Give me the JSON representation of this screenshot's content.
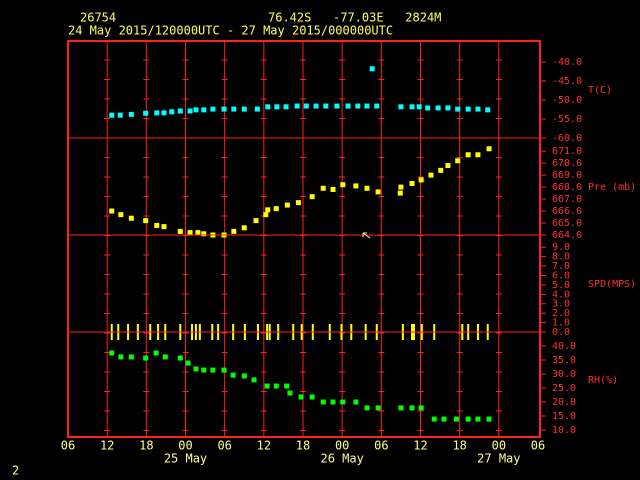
{
  "header": {
    "station": "26754",
    "location": "76.42S   -77.03E   2824M",
    "period": "24 May 2015/120000UTC - 27 May 2015/000000UTC",
    "page": "2"
  },
  "chart_data": [
    {
      "type": "scatter",
      "ylabel": "T(C)",
      "color": "#00ffff",
      "xlim": [
        0,
        72
      ],
      "ylim": [
        -60,
        -34.5
      ],
      "yticks": [
        {
          "value": -40,
          "label": "-40.0"
        },
        {
          "value": -45,
          "label": "-45.0"
        },
        {
          "value": -50,
          "label": "-50.0"
        },
        {
          "value": -55,
          "label": "-55.0"
        },
        {
          "value": -60,
          "label": "-60.0"
        }
      ],
      "x": [
        6.7,
        8.0,
        9.7,
        11.9,
        13.6,
        14.7,
        15.9,
        17.2,
        18.7,
        19.6,
        20.8,
        22.2,
        23.9,
        25.4,
        27.0,
        29.0,
        30.6,
        32.0,
        33.4,
        35.1,
        36.5,
        38.0,
        39.5,
        41.2,
        42.9,
        44.4,
        45.8,
        46.6,
        47.3,
        51.0,
        52.7,
        53.8,
        55.1,
        56.7,
        58.2,
        59.7,
        61.3,
        62.8,
        64.3
      ],
      "values": [
        -54.0,
        -54.0,
        -53.8,
        -53.5,
        -53.4,
        -53.4,
        -53.1,
        -52.9,
        -52.9,
        -52.6,
        -52.6,
        -52.4,
        -52.4,
        -52.4,
        -52.4,
        -52.4,
        -51.8,
        -51.8,
        -51.8,
        -51.6,
        -51.6,
        -51.6,
        -51.6,
        -51.6,
        -51.6,
        -51.6,
        -51.6,
        -41.8,
        -51.6,
        -51.8,
        -51.8,
        -51.8,
        -52.1,
        -52.1,
        -52.1,
        -52.4,
        -52.4,
        -52.4,
        -52.6
      ]
    },
    {
      "type": "scatter",
      "ylabel": "Pre (mb)",
      "color": "#ffff00",
      "xlim": [
        0,
        72
      ],
      "ylim": [
        664,
        672.1
      ],
      "yticks": [
        {
          "value": 671,
          "label": "671.0"
        },
        {
          "value": 670,
          "label": "670.0"
        },
        {
          "value": 669,
          "label": "669.0"
        },
        {
          "value": 668,
          "label": "668.0"
        },
        {
          "value": 667,
          "label": "667.0"
        },
        {
          "value": 666,
          "label": "666.0"
        },
        {
          "value": 665,
          "label": "665.0"
        },
        {
          "value": 664,
          "label": "664.0"
        }
      ],
      "x": [
        6.7,
        8.1,
        9.7,
        11.9,
        13.6,
        14.7,
        17.2,
        18.7,
        19.9,
        20.8,
        22.2,
        23.9,
        25.4,
        27.0,
        28.8,
        30.3,
        30.6,
        31.9,
        33.6,
        35.3,
        37.4,
        39.1,
        40.6,
        42.1,
        44.1,
        45.8,
        47.5,
        50.9,
        51.0,
        52.7,
        54.1,
        55.6,
        57.1,
        58.2,
        59.7,
        61.3,
        62.8,
        64.5
      ],
      "values": [
        666.0,
        665.7,
        665.4,
        665.2,
        664.8,
        664.7,
        664.3,
        664.2,
        664.2,
        664.1,
        664.0,
        664.0,
        664.3,
        664.6,
        665.2,
        665.7,
        666.1,
        666.2,
        666.5,
        666.7,
        667.2,
        667.9,
        667.8,
        668.2,
        668.1,
        667.9,
        667.6,
        667.5,
        668.0,
        668.3,
        668.6,
        669.0,
        669.4,
        669.8,
        670.2,
        670.7,
        670.7,
        671.2
      ]
    },
    {
      "type": "tick",
      "ylabel": "SPD(MPS)",
      "color": "#ffff00",
      "xlim": [
        0,
        72
      ],
      "ylim": [
        0,
        10.3
      ],
      "yticks": [
        {
          "value": 9,
          "label": "9.0"
        },
        {
          "value": 8,
          "label": "8.0"
        },
        {
          "value": 7,
          "label": "7.0"
        },
        {
          "value": 6,
          "label": "6.0"
        },
        {
          "value": 5,
          "label": "5.0"
        },
        {
          "value": 4,
          "label": "4.0"
        },
        {
          "value": 3,
          "label": "3.0"
        },
        {
          "value": 2,
          "label": "2.0"
        },
        {
          "value": 1,
          "label": "1.0"
        },
        {
          "value": 0,
          "label": "0.0"
        }
      ],
      "x": [
        6.7,
        7.7,
        9.2,
        10.7,
        12.6,
        13.8,
        14.9,
        17.2,
        19.0,
        19.6,
        20.2,
        22.1,
        23.0,
        25.3,
        27.1,
        29.1,
        30.5,
        30.9,
        32.2,
        34.5,
        35.8,
        37.5,
        40.1,
        41.9,
        43.4,
        45.6,
        47.3,
        51.3,
        52.7,
        53.0,
        54.2,
        56.1,
        60.4,
        61.3,
        62.8,
        64.3
      ],
      "values": [
        0,
        0,
        0,
        0,
        0,
        0,
        0,
        0,
        0,
        0,
        0,
        0,
        0,
        0,
        0,
        0,
        0,
        0,
        0,
        0,
        0,
        0,
        0,
        0,
        0,
        0,
        0,
        0,
        0,
        0,
        0,
        0,
        0,
        0,
        0,
        0
      ]
    },
    {
      "type": "scatter",
      "ylabel": "RH(%)",
      "color": "#00ff00",
      "xlim": [
        0,
        72
      ],
      "ylim": [
        7.5,
        45
      ],
      "yticks": [
        {
          "value": 40,
          "label": "40.0"
        },
        {
          "value": 35,
          "label": "35.0"
        },
        {
          "value": 30,
          "label": "30.0"
        },
        {
          "value": 25,
          "label": "25.0"
        },
        {
          "value": 20,
          "label": "20.0"
        },
        {
          "value": 15,
          "label": "15.0"
        },
        {
          "value": 10,
          "label": "10.0"
        }
      ],
      "x": [
        6.7,
        8.1,
        9.7,
        11.9,
        13.5,
        14.9,
        17.2,
        18.4,
        19.6,
        20.8,
        22.2,
        23.9,
        25.3,
        27.0,
        28.5,
        30.5,
        31.9,
        33.5,
        34.0,
        35.7,
        37.4,
        39.1,
        40.6,
        42.1,
        44.1,
        45.8,
        47.5,
        51.0,
        52.7,
        54.1,
        56.1,
        57.6,
        59.5,
        61.3,
        62.8,
        64.5
      ],
      "values": [
        37.5,
        36.1,
        36.1,
        35.7,
        37.5,
        36.1,
        35.7,
        33.9,
        31.8,
        31.4,
        31.4,
        31.4,
        29.6,
        29.3,
        27.9,
        25.7,
        25.7,
        25.7,
        23.2,
        21.8,
        21.8,
        20.0,
        20.0,
        20.0,
        20.0,
        17.9,
        17.9,
        17.9,
        17.9,
        17.9,
        13.9,
        13.9,
        13.9,
        13.9,
        13.9,
        13.9
      ],
      "xticks": [
        {
          "value": 0,
          "label": "06"
        },
        {
          "value": 6,
          "label": "12"
        },
        {
          "value": 12,
          "label": "18"
        },
        {
          "value": 18,
          "label": "00"
        },
        {
          "value": 24,
          "label": "06"
        },
        {
          "value": 30,
          "label": "12"
        },
        {
          "value": 36,
          "label": "18"
        },
        {
          "value": 42,
          "label": "00"
        },
        {
          "value": 48,
          "label": "06"
        },
        {
          "value": 54,
          "label": "12"
        },
        {
          "value": 60,
          "label": "18"
        },
        {
          "value": 66,
          "label": "00"
        },
        {
          "value": 72,
          "label": "06"
        }
      ],
      "date_labels": [
        {
          "value": 18,
          "label": "25 May"
        },
        {
          "value": 42,
          "label": "26 May"
        },
        {
          "value": 66,
          "label": "27 May"
        }
      ]
    }
  ]
}
